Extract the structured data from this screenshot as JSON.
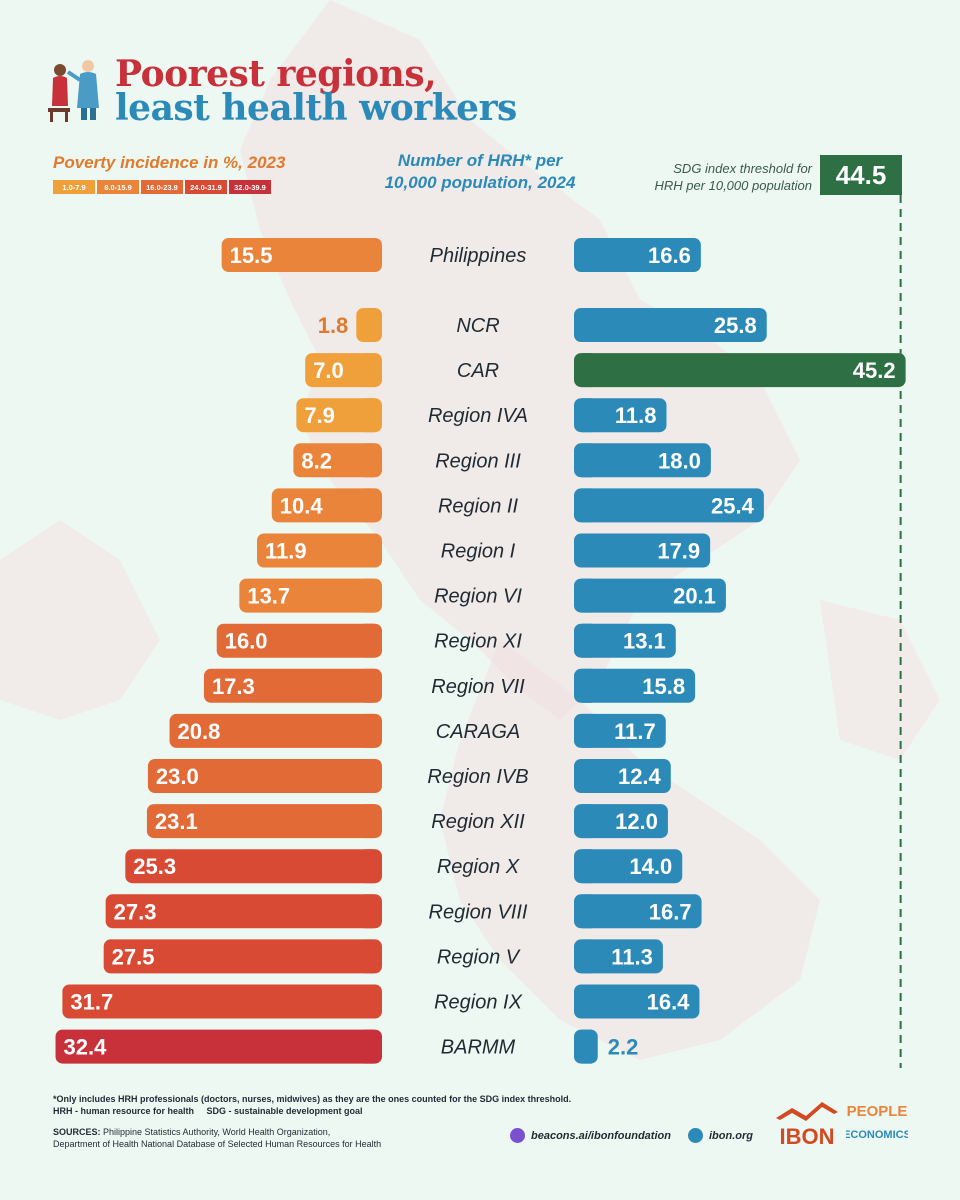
{
  "title": {
    "line1": "Poorest regions,",
    "line2": "least health workers"
  },
  "poverty_heading": "Poverty incidence in %, 2023",
  "legend": [
    {
      "label": "1.0-7.9",
      "color": "#f0a03a"
    },
    {
      "label": "8.0-15.9",
      "color": "#e9843a"
    },
    {
      "label": "16.0-23.9",
      "color": "#e26a36"
    },
    {
      "label": "24.0-31.9",
      "color": "#d84a33"
    },
    {
      "label": "32.0-39.9",
      "color": "#c8303a"
    }
  ],
  "hrh_heading": {
    "line1": "Number of HRH* per",
    "line2": "10,000 population, 2024"
  },
  "sdg": {
    "label_line1": "SDG index threshold for",
    "label_line2": "HRH per 10,000 population",
    "value": "44.5"
  },
  "chart_data": {
    "type": "bar",
    "categories": [
      "Philippines",
      "NCR",
      "CAR",
      "Region IVA",
      "Region III",
      "Region II",
      "Region I",
      "Region VI",
      "Region XI",
      "Region VII",
      "CARAGA",
      "Region IVB",
      "Region XII",
      "Region X",
      "Region VIII",
      "Region V",
      "Region IX",
      "BARMM"
    ],
    "series": [
      {
        "name": "Poverty incidence in %, 2023",
        "values": [
          15.5,
          1.8,
          7.0,
          7.9,
          8.2,
          10.4,
          11.9,
          13.7,
          16.0,
          17.3,
          20.8,
          23.0,
          23.1,
          25.3,
          27.3,
          27.5,
          31.7,
          32.4
        ],
        "labels": [
          "15.5",
          "1.8",
          "7.0",
          "7.9",
          "8.2",
          "10.4",
          "11.9",
          "13.7",
          "16.0",
          "17.3",
          "20.8",
          "23.0",
          "23.1",
          "25.3",
          "27.3",
          "27.5",
          "31.7",
          "32.4"
        ]
      },
      {
        "name": "Number of HRH* per 10,000 population, 2024",
        "values": [
          16.6,
          25.8,
          45.2,
          11.8,
          18.0,
          25.4,
          17.9,
          20.1,
          13.1,
          15.8,
          11.7,
          12.4,
          12.0,
          14.0,
          16.7,
          11.3,
          16.4,
          2.2
        ],
        "labels": [
          "16.6",
          "25.8",
          "45.2",
          "11.8",
          "18.0",
          "25.4",
          "17.9",
          "20.1",
          "13.1",
          "15.8",
          "11.7",
          "12.4",
          "12.0",
          "14.0",
          "16.7",
          "11.3",
          "16.4",
          "2.2"
        ]
      }
    ],
    "threshold": {
      "value": 44.5
    },
    "colors": {
      "hrh": "#2b8ab8",
      "hrh_above_threshold": "#2e6f43",
      "threshold": "#2e6f43"
    }
  },
  "footnote": {
    "line1": "*Only includes HRH professionals (doctors, nurses, midwives) as they are the ones counted for the SDG index threshold.",
    "line2": "HRH - human resource for health     SDG - sustainable development goal"
  },
  "sources": {
    "label": "SOURCES:",
    "line1": " Philippine Statistics Authority, World Health Organization,",
    "line2": "Department of Health National Database of Selected Human Resources for Health"
  },
  "links": {
    "beacons": "beacons.ai/ibonfoundation",
    "site": "ibon.org"
  },
  "logos": {
    "ibon": "IBON",
    "people_line1": "PEOPLE",
    "people_line2": "ECONOMICS"
  }
}
